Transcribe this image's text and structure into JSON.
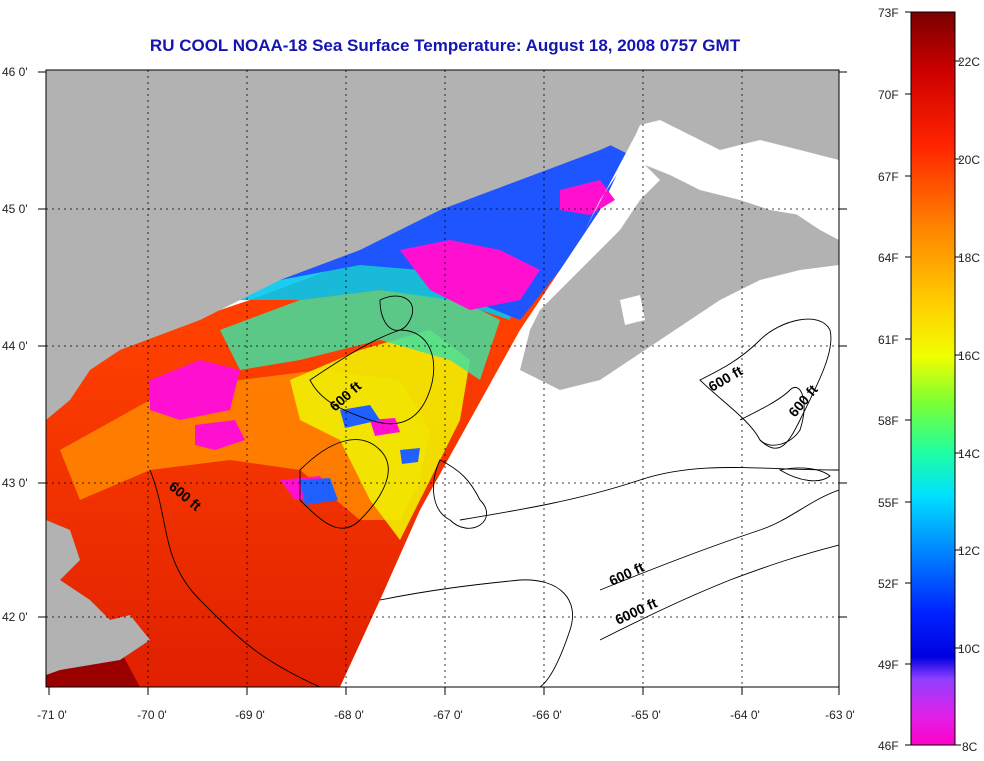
{
  "title": "RU COOL  NOAA-18  Sea Surface Temperature:  August 18, 2008 0757 GMT",
  "map": {
    "lon_ticks": [
      "-71 0'",
      "-70 0'",
      "-69 0'",
      "-68 0'",
      "-67 0'",
      "-66 0'",
      "-65 0'",
      "-64 0'",
      "-63 0'"
    ],
    "lat_ticks": [
      "46 0'",
      "45 0'",
      "44 0'",
      "43 0'",
      "42 0'"
    ],
    "contour_labels": [
      {
        "text": "600 ft"
      },
      {
        "text": "600 ft"
      },
      {
        "text": "600 ft"
      },
      {
        "text": "600 ft"
      },
      {
        "text": "600 ft"
      },
      {
        "text": "6000 ft"
      }
    ]
  },
  "colorbar": {
    "fahrenheit": [
      "73F",
      "70F",
      "67F",
      "64F",
      "61F",
      "58F",
      "55F",
      "52F",
      "49F",
      "46F"
    ],
    "celsius": [
      "22C",
      "20C",
      "18C",
      "16C",
      "14C",
      "12C",
      "10C",
      "8C"
    ],
    "colors": [
      "#7a0000",
      "#cc0000",
      "#ff3300",
      "#ff8800",
      "#ffd000",
      "#f0ff00",
      "#66ff33",
      "#00ffcc",
      "#00aaff",
      "#0044ff",
      "#0000dd",
      "#aa44ff",
      "#ff00cc"
    ]
  }
}
